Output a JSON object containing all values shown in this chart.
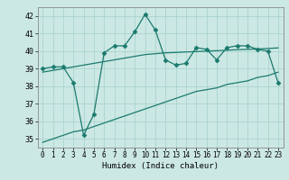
{
  "title": "",
  "xlabel": "Humidex (Indice chaleur)",
  "ylabel": "",
  "bg_color": "#cce8e4",
  "grid_color": "#aad4ce",
  "line_color": "#1a7a6e",
  "xlim": [
    -0.5,
    23.5
  ],
  "ylim": [
    34.5,
    42.5
  ],
  "yticks": [
    35,
    36,
    37,
    38,
    39,
    40,
    41,
    42
  ],
  "xticks": [
    0,
    1,
    2,
    3,
    4,
    5,
    6,
    7,
    8,
    9,
    10,
    11,
    12,
    13,
    14,
    15,
    16,
    17,
    18,
    19,
    20,
    21,
    22,
    23
  ],
  "line1_x": [
    0,
    1,
    2,
    3,
    4,
    5,
    6,
    7,
    8,
    9,
    10,
    11,
    12,
    13,
    14,
    15,
    16,
    17,
    18,
    19,
    20,
    21,
    22,
    23
  ],
  "line1_y": [
    39.0,
    39.1,
    39.1,
    38.2,
    35.2,
    36.4,
    39.9,
    40.3,
    40.3,
    41.1,
    42.1,
    41.2,
    39.5,
    39.2,
    39.3,
    40.2,
    40.1,
    39.5,
    40.2,
    40.3,
    40.3,
    40.1,
    40.0,
    38.2
  ],
  "line2_x": [
    0,
    1,
    2,
    3,
    4,
    5,
    6,
    7,
    8,
    9,
    10,
    11,
    12,
    13,
    14,
    15,
    16,
    17,
    18,
    19,
    20,
    21,
    22,
    23
  ],
  "line2_y": [
    38.8,
    38.9,
    39.0,
    39.1,
    39.2,
    39.3,
    39.4,
    39.5,
    39.6,
    39.7,
    39.8,
    39.85,
    39.9,
    39.92,
    39.95,
    39.97,
    40.0,
    40.02,
    40.05,
    40.08,
    40.1,
    40.12,
    40.15,
    40.18
  ],
  "line3_x": [
    0,
    1,
    2,
    3,
    4,
    5,
    6,
    7,
    8,
    9,
    10,
    11,
    12,
    13,
    14,
    15,
    16,
    17,
    18,
    19,
    20,
    21,
    22,
    23
  ],
  "line3_y": [
    34.8,
    35.0,
    35.2,
    35.4,
    35.5,
    35.7,
    35.9,
    36.1,
    36.3,
    36.5,
    36.7,
    36.9,
    37.1,
    37.3,
    37.5,
    37.7,
    37.8,
    37.9,
    38.1,
    38.2,
    38.3,
    38.5,
    38.6,
    38.8
  ],
  "xlabel_fontsize": 6.5,
  "tick_fontsize": 5.5
}
